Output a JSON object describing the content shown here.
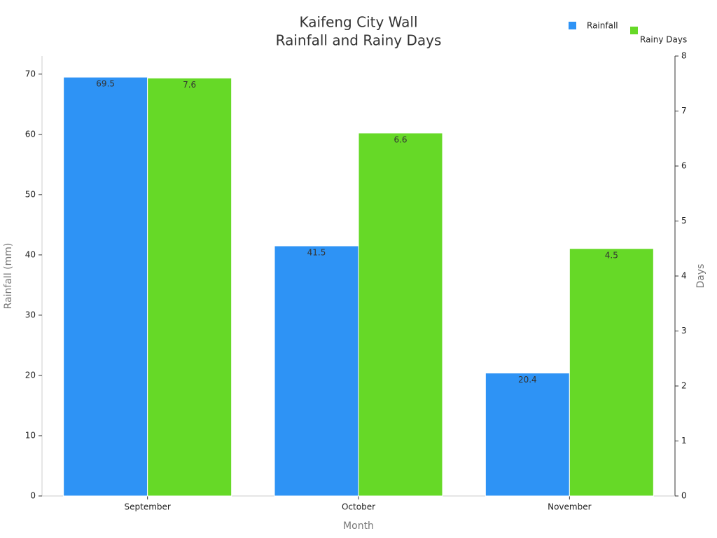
{
  "chart_data": {
    "type": "bar",
    "title": [
      "Kaifeng City Wall",
      "Rainfall and Rainy Days"
    ],
    "x_label": "Month",
    "y_label": "Rainfall (mm)",
    "y2_label": "Days",
    "categories": [
      "September",
      "October",
      "November"
    ],
    "series": [
      {
        "name": "Rainfall",
        "color": "#2e93f5",
        "values": [
          69.5,
          41.5,
          20.4
        ]
      },
      {
        "name": "Rainy Days",
        "color": "#66d927",
        "values": [
          7.6,
          6.6,
          4.5
        ],
        "axis": "y2"
      }
    ],
    "ylim": [
      0,
      73
    ],
    "yticks": [
      0,
      10,
      20,
      30,
      40,
      50,
      60,
      70
    ],
    "y2lim": [
      0,
      8
    ],
    "y2ticks": [
      0,
      1,
      2,
      3,
      4,
      5,
      6,
      7,
      8
    ],
    "legend": "top-right"
  }
}
